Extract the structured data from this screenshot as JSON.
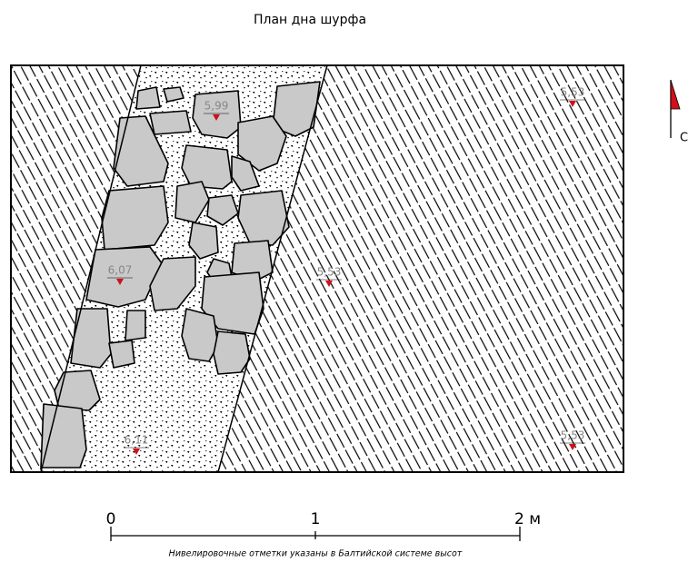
{
  "title": "План дна шурфа",
  "elevations": [
    "5,99",
    "6,07",
    "5,53",
    "6,11",
    "5,53",
    "5,53"
  ],
  "north": "С",
  "scale": {
    "labels": [
      "0",
      "1",
      "2 м"
    ]
  },
  "note": "Нивелировочные отметки указаны в Балтийской системе высот"
}
